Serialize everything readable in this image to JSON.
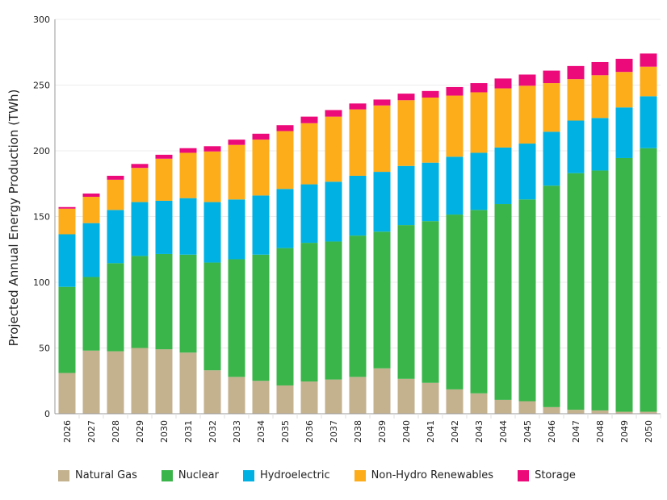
{
  "chart_data": {
    "type": "bar",
    "stacked": true,
    "title": "",
    "xlabel": "",
    "ylabel": "Projected Annual Energy Production (TWh)",
    "ylim": [
      0,
      300
    ],
    "yticks": [
      0,
      50,
      100,
      150,
      200,
      250,
      300
    ],
    "grid": true,
    "legend_position": "bottom",
    "categories": [
      "2026",
      "2027",
      "2028",
      "2029",
      "2030",
      "2031",
      "2032",
      "2033",
      "2034",
      "2035",
      "2036",
      "2037",
      "2038",
      "2039",
      "2040",
      "2041",
      "2042",
      "2043",
      "2044",
      "2045",
      "2046",
      "2047",
      "2048",
      "2049",
      "2050"
    ],
    "series": [
      {
        "name": "Natural Gas",
        "color": "#c4b28f",
        "values": [
          31,
          48,
          47.5,
          50,
          49,
          46.5,
          33,
          28,
          25,
          21.5,
          24.5,
          26,
          28,
          34.5,
          26.5,
          23.5,
          18.5,
          15.5,
          10.5,
          9.5,
          5,
          3,
          2.5,
          1.5,
          1.5
        ]
      },
      {
        "name": "Nuclear",
        "color": "#3ab54a",
        "values": [
          65.5,
          56,
          67,
          70,
          72.5,
          74.5,
          82,
          89.5,
          96,
          104.5,
          105.5,
          105,
          107.5,
          104,
          117,
          123,
          133,
          139.5,
          149,
          153.5,
          168.5,
          180,
          182.5,
          193,
          200.5
        ]
      },
      {
        "name": "Hydroelectric",
        "color": "#00b2e3",
        "values": [
          40,
          41,
          40.5,
          41,
          40.5,
          43,
          46,
          45.5,
          45,
          45,
          44.5,
          45.5,
          45.5,
          45.5,
          45,
          44.5,
          44,
          43.5,
          43,
          42.5,
          41,
          40,
          40,
          38.5,
          39.5
        ]
      },
      {
        "name": "Non-Hydro Renewables",
        "color": "#fdad1a",
        "values": [
          19.5,
          20,
          23,
          26,
          32,
          34.5,
          38.5,
          41.5,
          42.5,
          44,
          46.5,
          49.5,
          50.5,
          50.5,
          50,
          49.5,
          46.5,
          46,
          45,
          44,
          37,
          31.5,
          32.5,
          27,
          22.5
        ]
      },
      {
        "name": "Storage",
        "color": "#ec0a7b",
        "values": [
          1.2,
          2.5,
          3,
          3,
          3,
          3.5,
          4,
          4,
          4.5,
          4.5,
          5,
          5,
          4.5,
          4.5,
          5,
          5,
          6.5,
          7,
          7.5,
          8.5,
          9.5,
          10,
          10,
          10,
          10
        ]
      }
    ]
  }
}
